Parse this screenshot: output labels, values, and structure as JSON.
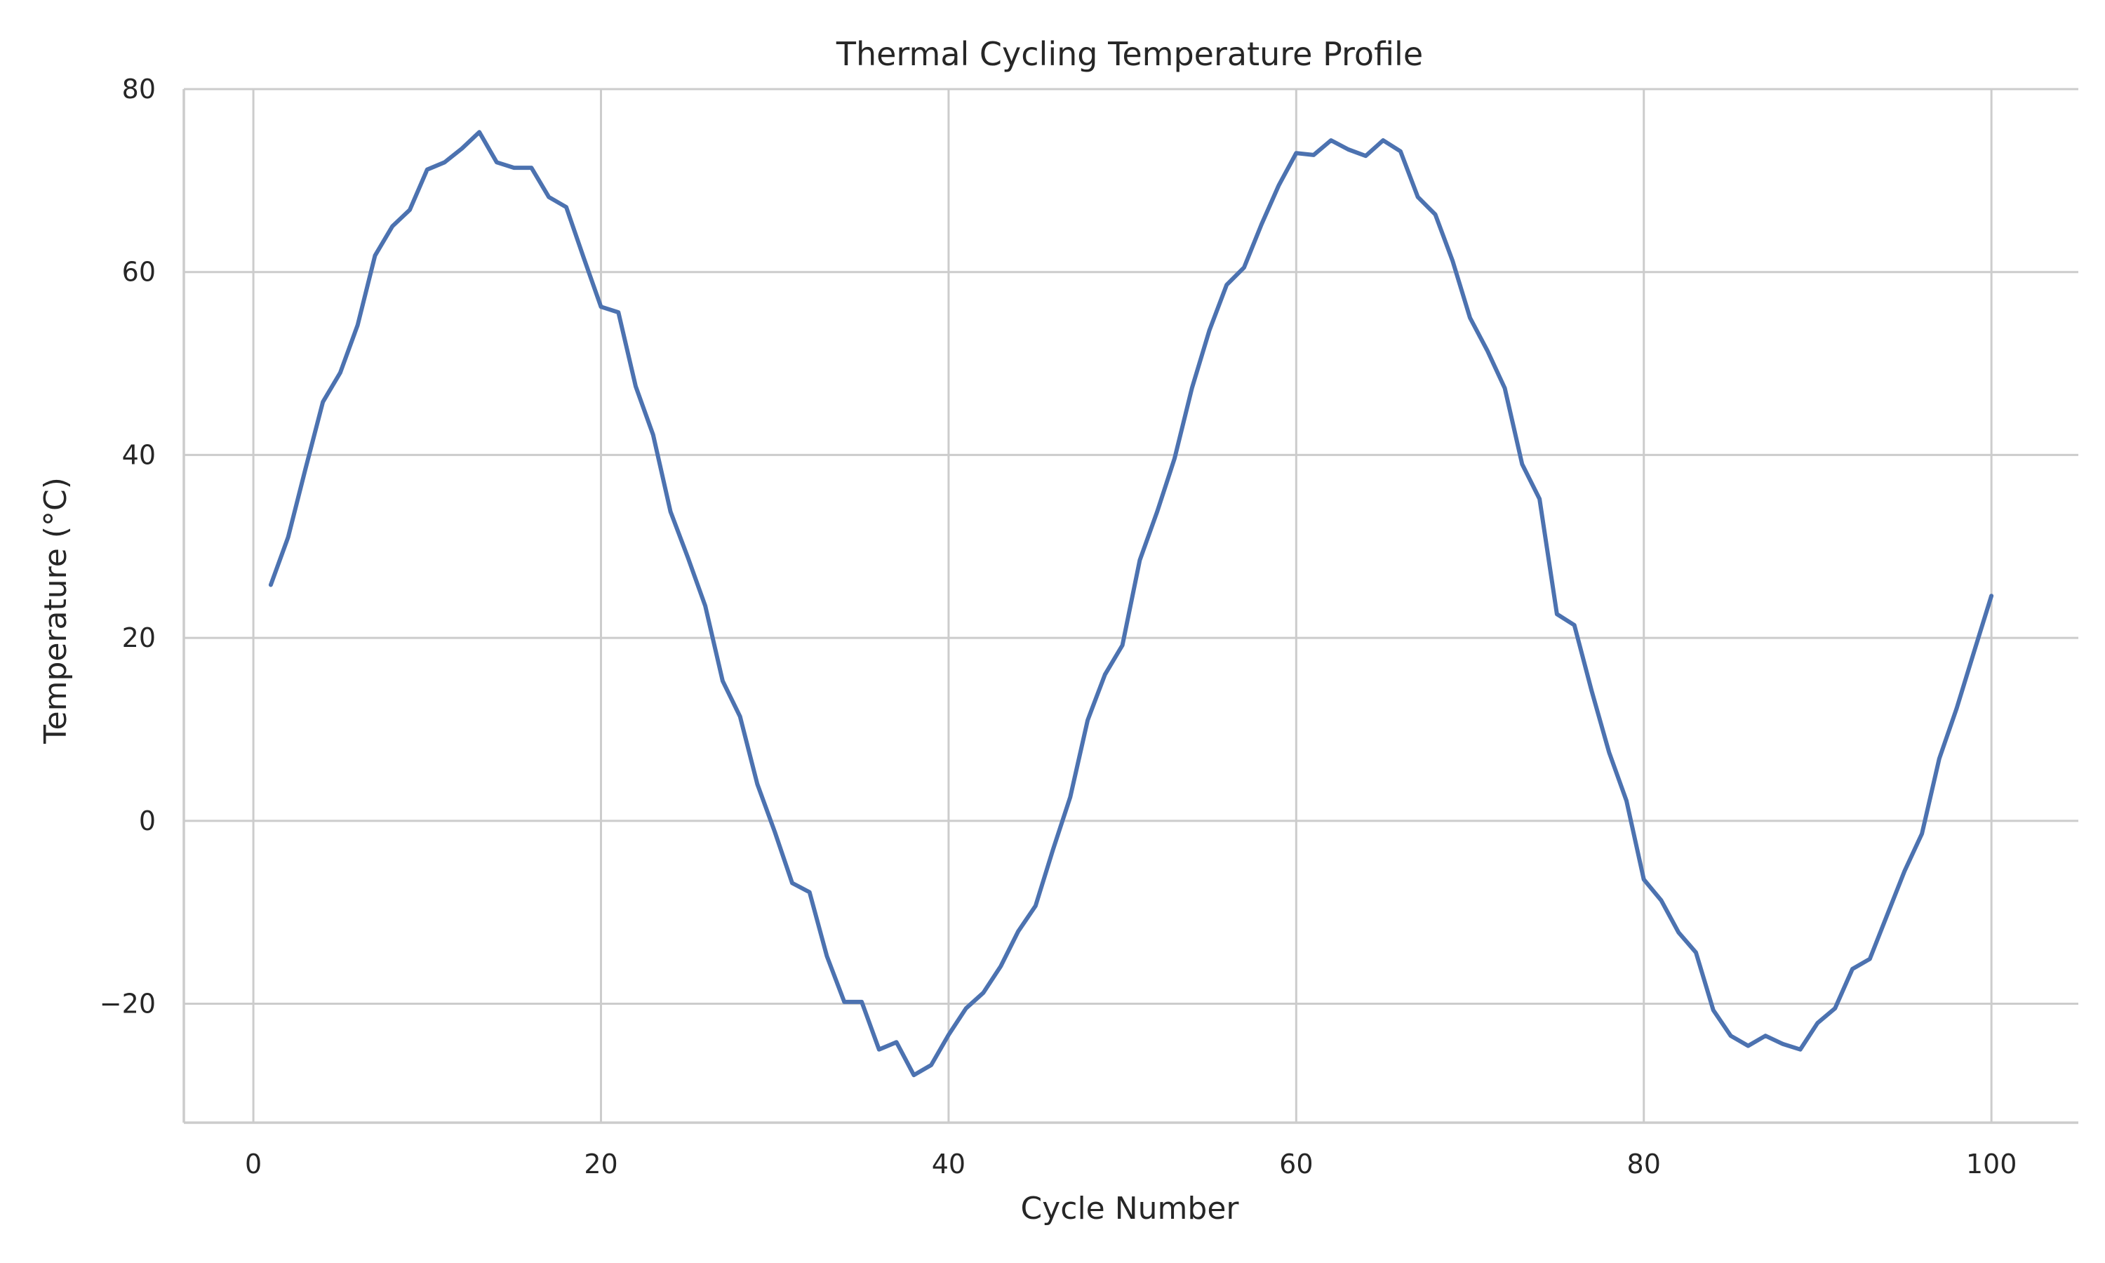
{
  "chart_data": {
    "type": "line",
    "title": "Thermal Cycling Temperature Profile",
    "xlabel": "Cycle Number",
    "ylabel": "Temperature (°C)",
    "xlim": [
      -4,
      105
    ],
    "ylim": [
      -33,
      80
    ],
    "xticks": [
      0,
      20,
      40,
      60,
      80,
      100
    ],
    "xtick_labels": [
      "0",
      "20",
      "40",
      "60",
      "80",
      "100"
    ],
    "yticks": [
      -20,
      0,
      20,
      40,
      60,
      80
    ],
    "ytick_labels": [
      "−20",
      "0",
      "20",
      "40",
      "60",
      "80"
    ],
    "grid": true,
    "line_color": "#4c72b0",
    "series": [
      {
        "x": [
          1,
          2,
          3,
          4,
          5,
          6,
          7,
          8,
          9,
          10,
          11,
          12,
          13,
          14,
          15,
          16,
          17,
          18,
          19,
          20,
          21,
          22,
          23,
          24,
          25,
          26,
          27,
          28,
          29,
          30,
          31,
          32,
          33,
          34,
          35,
          36,
          37,
          38,
          39,
          40,
          41,
          42,
          43,
          44,
          45,
          46,
          47,
          48,
          49,
          50,
          51,
          52,
          53,
          54,
          55,
          56,
          57,
          58,
          59,
          60,
          61,
          62,
          63,
          64,
          65,
          66,
          67,
          68,
          69,
          70,
          71,
          72,
          73,
          74,
          75,
          76,
          77,
          78,
          79,
          80,
          81,
          82,
          83,
          84,
          85,
          86,
          87,
          88,
          89,
          90,
          91,
          92,
          93,
          94,
          95,
          96,
          97,
          98,
          99,
          100
        ],
        "values": [
          25.8,
          31.0,
          38.5,
          45.8,
          49.0,
          54.2,
          61.8,
          65.0,
          66.8,
          71.2,
          72.0,
          73.5,
          75.3,
          72.0,
          71.4,
          71.4,
          68.2,
          67.1,
          61.6,
          56.2,
          55.6,
          47.5,
          42.2,
          33.8,
          28.8,
          23.5,
          15.3,
          11.4,
          4.0,
          -1.2,
          -6.8,
          -7.8,
          -14.8,
          -19.8,
          -19.8,
          -25.0,
          -24.2,
          -27.8,
          -26.7,
          -23.4,
          -20.5,
          -18.8,
          -15.9,
          -12.1,
          -9.3,
          -3.2,
          2.6,
          11.0,
          16.0,
          19.2,
          28.5,
          33.8,
          39.6,
          47.3,
          53.6,
          58.6,
          60.5,
          65.2,
          69.5,
          73.0,
          72.8,
          74.4,
          73.4,
          72.7,
          74.4,
          73.2,
          68.2,
          66.3,
          61.2,
          55.0,
          51.4,
          47.3,
          39.0,
          35.2,
          22.6,
          21.4,
          14.2,
          7.5,
          2.2,
          -6.4,
          -8.7,
          -12.2,
          -14.4,
          -20.7,
          -23.5,
          -24.6,
          -23.5,
          -24.4,
          -25.0,
          -22.1,
          -20.5,
          -16.2,
          -15.1,
          -10.3,
          -5.5,
          -1.4,
          6.8,
          12.3,
          18.5,
          24.6
        ]
      }
    ]
  }
}
